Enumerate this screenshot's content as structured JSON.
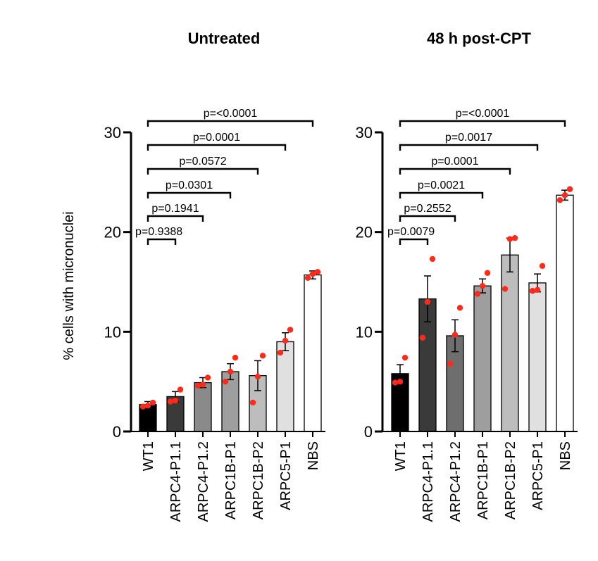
{
  "chart_data": [
    {
      "type": "bar",
      "title": "Untreated",
      "ylabel": "% cells with micronuclei",
      "ylim": [
        0,
        30
      ],
      "yticks": [
        0,
        10,
        20,
        30
      ],
      "categories": [
        "WT1",
        "ARPC4-P1.1",
        "ARPC4-P1.2",
        "ARPC1B-P1",
        "ARPC1B-P2",
        "ARPC5-P1",
        "NBS"
      ],
      "values": [
        2.7,
        3.5,
        4.9,
        6.0,
        5.6,
        9.0,
        15.7
      ],
      "errors": [
        0.3,
        0.5,
        0.5,
        0.8,
        1.5,
        0.9,
        0.4
      ],
      "points": [
        [
          2.5,
          2.6,
          2.9
        ],
        [
          3.0,
          3.1,
          4.2
        ],
        [
          4.6,
          4.7,
          5.4
        ],
        [
          5.0,
          6.0,
          7.4
        ],
        [
          2.9,
          5.5,
          7.6
        ],
        [
          7.9,
          9.1,
          10.2
        ],
        [
          15.4,
          15.8,
          16.0
        ]
      ],
      "bar_colors": [
        "#000000",
        "#3a3a3a",
        "#8a8a8a",
        "#9e9e9e",
        "#bdbdbd",
        "#e0e0e0",
        "#ffffff"
      ],
      "point_color": "#ff2a1a",
      "comparisons": [
        {
          "label": "p=0.9388",
          "from": 0,
          "to": 1
        },
        {
          "label": "p=0.1941",
          "from": 0,
          "to": 2
        },
        {
          "label": "p=0.0301",
          "from": 0,
          "to": 3
        },
        {
          "label": "p=0.0572",
          "from": 0,
          "to": 4
        },
        {
          "label": "p=0.0001",
          "from": 0,
          "to": 5
        },
        {
          "label": "p=<0.0001",
          "from": 0,
          "to": 6
        }
      ]
    },
    {
      "type": "bar",
      "title": "48 h post-CPT",
      "ylabel": "",
      "ylim": [
        0,
        30
      ],
      "yticks": [
        0,
        10,
        20,
        30
      ],
      "categories": [
        "WT1",
        "ARPC4-P1.1",
        "ARPC4-P1.2",
        "ARPC1B-P1",
        "ARPC1B-P2",
        "ARPC5-P1",
        "NBS"
      ],
      "values": [
        5.8,
        13.3,
        9.6,
        14.6,
        17.7,
        14.9,
        23.7
      ],
      "errors": [
        0.9,
        2.3,
        1.6,
        0.7,
        1.7,
        0.9,
        0.5
      ],
      "points": [
        [
          4.9,
          5.0,
          7.4
        ],
        [
          9.4,
          13.0,
          17.3
        ],
        [
          6.8,
          9.7,
          12.4
        ],
        [
          13.8,
          14.6,
          15.9
        ],
        [
          14.3,
          19.3,
          19.4
        ],
        [
          14.1,
          14.2,
          16.6
        ],
        [
          23.2,
          23.7,
          24.3
        ]
      ],
      "bar_colors": [
        "#000000",
        "#3a3a3a",
        "#6e6e6e",
        "#9e9e9e",
        "#bdbdbd",
        "#e0e0e0",
        "#ffffff"
      ],
      "point_color": "#ff2a1a",
      "comparisons": [
        {
          "label": "p=0.0079",
          "from": 0,
          "to": 1
        },
        {
          "label": "p=0.2552",
          "from": 0,
          "to": 2
        },
        {
          "label": "p=0.0021",
          "from": 0,
          "to": 3
        },
        {
          "label": "p=0.0001",
          "from": 0,
          "to": 4
        },
        {
          "label": "p=0.0017",
          "from": 0,
          "to": 5
        },
        {
          "label": "p=<0.0001",
          "from": 0,
          "to": 6
        }
      ]
    }
  ]
}
